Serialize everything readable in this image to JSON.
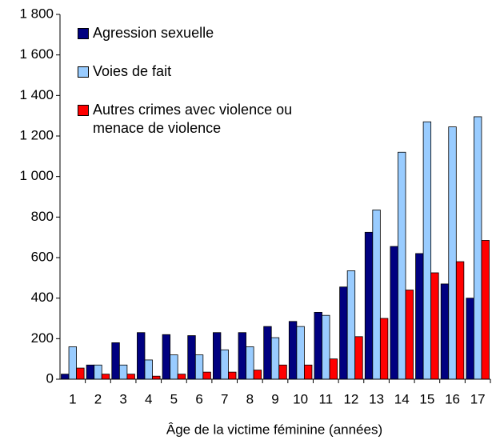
{
  "chart_data": {
    "type": "bar",
    "x_label": "Âge de la victime féminine (années)",
    "categories": [
      "1",
      "2",
      "3",
      "4",
      "5",
      "6",
      "7",
      "8",
      "9",
      "10",
      "11",
      "12",
      "13",
      "14",
      "15",
      "16",
      "17"
    ],
    "series": [
      {
        "name": "Agression sexuelle",
        "color": "#000080",
        "values": [
          25,
          70,
          180,
          230,
          220,
          215,
          230,
          230,
          260,
          285,
          330,
          455,
          725,
          655,
          620,
          470,
          400
        ]
      },
      {
        "name": "Voies de fait",
        "color": "#99ccff",
        "values": [
          160,
          70,
          70,
          95,
          120,
          120,
          145,
          160,
          205,
          260,
          315,
          535,
          835,
          1120,
          1270,
          1245,
          1295
        ]
      },
      {
        "name": "Autres crimes avec violence ou menace de violence",
        "color": "#ff0000",
        "values": [
          55,
          25,
          25,
          15,
          25,
          35,
          35,
          45,
          70,
          70,
          100,
          210,
          300,
          440,
          525,
          580,
          685
        ]
      }
    ],
    "ylim": [
      0,
      1800
    ],
    "yticks": [
      0,
      200,
      400,
      600,
      800,
      {
        "value": 1000,
        "label": "1 000"
      },
      {
        "value": 1200,
        "label": "1 200"
      },
      {
        "value": 1400,
        "label": "1 400"
      },
      {
        "value": 1600,
        "label": "1 600"
      },
      {
        "value": 1800,
        "label": "1 800"
      }
    ],
    "legend": "upper left",
    "grid": false
  }
}
